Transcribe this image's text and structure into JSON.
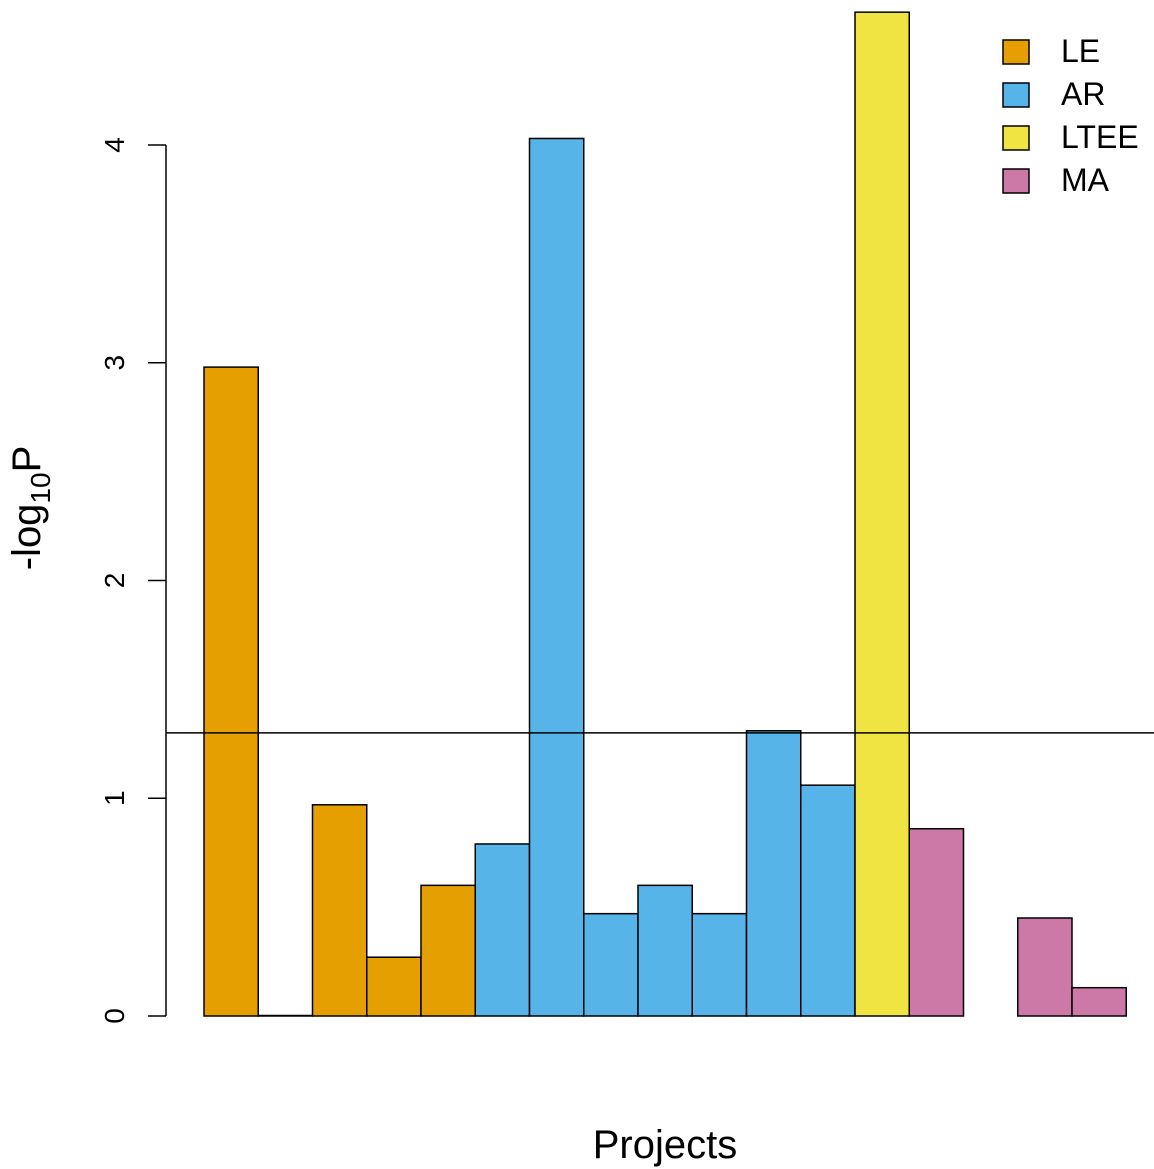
{
  "chart_data": {
    "type": "bar",
    "title": "",
    "xlabel": "Projects",
    "ylabel_main": "-log",
    "ylabel_sub": "10",
    "ylabel_tail": "P",
    "ylim": [
      0,
      4.6
    ],
    "yticks": [
      0,
      1,
      2,
      3,
      4
    ],
    "threshold": 1.3,
    "grid": false,
    "legend_placement": "top-right",
    "legend": [
      {
        "name": "LE",
        "color": "#E69F00"
      },
      {
        "name": "AR",
        "color": "#56B4E9"
      },
      {
        "name": "LTEE",
        "color": "#F0E442"
      },
      {
        "name": "MA",
        "color": "#CC79A7"
      }
    ],
    "bars": [
      {
        "group": "LE",
        "value": 2.98
      },
      {
        "group": "LE",
        "value": 0.0
      },
      {
        "group": "LE",
        "value": 0.97
      },
      {
        "group": "LE",
        "value": 0.27
      },
      {
        "group": "LE",
        "value": 0.6
      },
      {
        "group": "AR",
        "value": 0.79
      },
      {
        "group": "AR",
        "value": 4.03
      },
      {
        "group": "AR",
        "value": 0.47
      },
      {
        "group": "AR",
        "value": 0.6
      },
      {
        "group": "AR",
        "value": 0.47
      },
      {
        "group": "AR",
        "value": 1.31
      },
      {
        "group": "AR",
        "value": 1.06
      },
      {
        "group": "LTEE",
        "value": 4.61
      },
      {
        "group": "MA",
        "value": 0.86
      },
      {
        "group": "MA",
        "value": null
      },
      {
        "group": "MA",
        "value": 0.45
      },
      {
        "group": "MA",
        "value": 0.13
      }
    ]
  }
}
